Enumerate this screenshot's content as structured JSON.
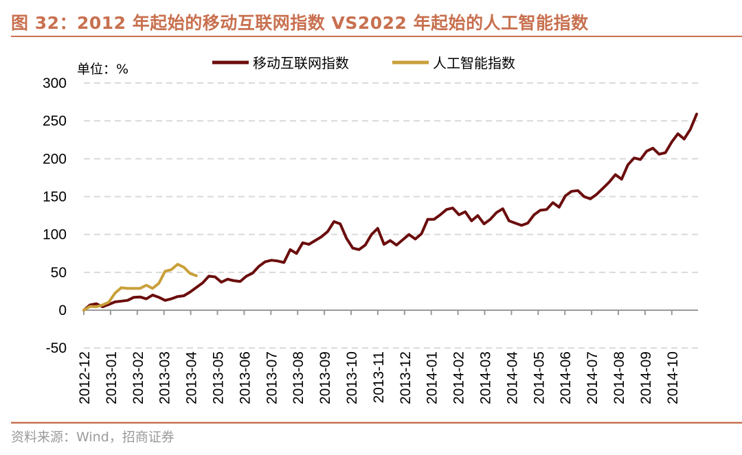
{
  "title": "图 32：2012 年起始的移动互联网指数 VS2022 年起始的人工智能指数",
  "source": "资料来源：Wind，招商证券",
  "colors": {
    "title": "#c8704f",
    "mobile": "#6b0d0d",
    "ai": "#c9a03a",
    "grid": "#d9d9d9",
    "axis": "#999999"
  },
  "chart_data": {
    "type": "line",
    "unit_label": "单位：%",
    "ylim": [
      -50,
      300
    ],
    "yticks": [
      300,
      250,
      200,
      150,
      100,
      50,
      0,
      -50
    ],
    "x_tick_labels": [
      "2012-12",
      "2013-01",
      "2013-02",
      "2013-03",
      "2013-04",
      "2013-05",
      "2013-06",
      "2013-07",
      "2013-08",
      "2013-09",
      "2013-10",
      "2013-11",
      "2013-12",
      "2014-01",
      "2014-02",
      "2014-03",
      "2014-04",
      "2014-05",
      "2014-06",
      "2014-07",
      "2014-08",
      "2014-09",
      "2014-10"
    ],
    "grid": "horizontal dashed",
    "legend_position": "top",
    "series": [
      {
        "name": "移动互联网指数",
        "color": "#6b0d0d",
        "values": [
          0,
          7,
          8.5,
          4.5,
          7.6,
          11,
          12,
          13,
          17,
          17.5,
          15,
          20,
          17,
          13,
          15,
          18,
          19,
          24,
          30,
          36,
          45,
          44,
          37,
          41,
          39,
          38,
          45,
          49,
          58,
          64,
          66,
          65,
          63,
          80,
          75,
          89,
          87,
          92,
          97,
          104,
          117,
          114,
          95,
          82,
          80,
          86,
          100,
          108,
          87,
          92,
          86,
          93,
          100,
          94,
          101,
          120,
          120,
          126,
          133,
          135,
          126,
          130,
          118,
          125,
          114,
          120,
          129,
          134,
          118,
          115,
          112,
          115,
          126,
          132,
          133,
          142,
          136,
          151,
          157,
          158,
          150,
          147,
          153,
          161,
          169,
          179,
          173,
          192,
          201,
          199,
          210,
          214,
          206,
          208,
          222,
          233,
          226,
          239,
          259
        ]
      },
      {
        "name": "人工智能指数",
        "color": "#c9a03a",
        "values": [
          0,
          5,
          4.5,
          7,
          10.6,
          22.7,
          29.7,
          28.8,
          28.8,
          28.8,
          33,
          28.8,
          35.5,
          51.5,
          53.6,
          60.6,
          56.7,
          48.5,
          45.5
        ]
      }
    ]
  }
}
